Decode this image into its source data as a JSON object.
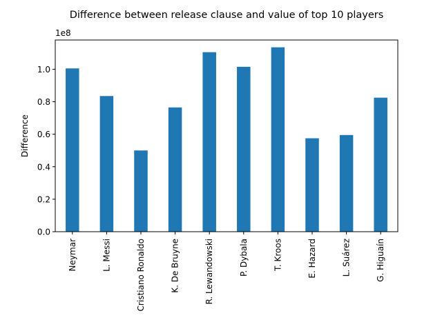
{
  "chart_data": {
    "type": "bar",
    "title": "Difference between release clause and value of top 10 players",
    "xlabel": "",
    "ylabel": "Difference",
    "y_offset_label": "1e8",
    "categories": [
      "Neymar",
      "L. Messi",
      "Cristiano Ronaldo",
      "K. De Bruyne",
      "R. Lewandowski",
      "P. Dybala",
      "T. Kroos",
      "E. Hazard",
      "L. Suárez",
      "G. Higuaín"
    ],
    "values": [
      100500000,
      83500000,
      50000000,
      76500000,
      110500000,
      101500000,
      113500000,
      57500000,
      59500000,
      82500000
    ],
    "ylim": [
      0,
      118000000
    ],
    "y_ticks": [
      0,
      20000000,
      40000000,
      60000000,
      80000000,
      100000000
    ],
    "y_tick_labels": [
      "0.0",
      "0.2",
      "0.4",
      "0.6",
      "0.8",
      "1.0"
    ],
    "bar_color": "#1f77b4",
    "grid": false,
    "legend": "none"
  }
}
